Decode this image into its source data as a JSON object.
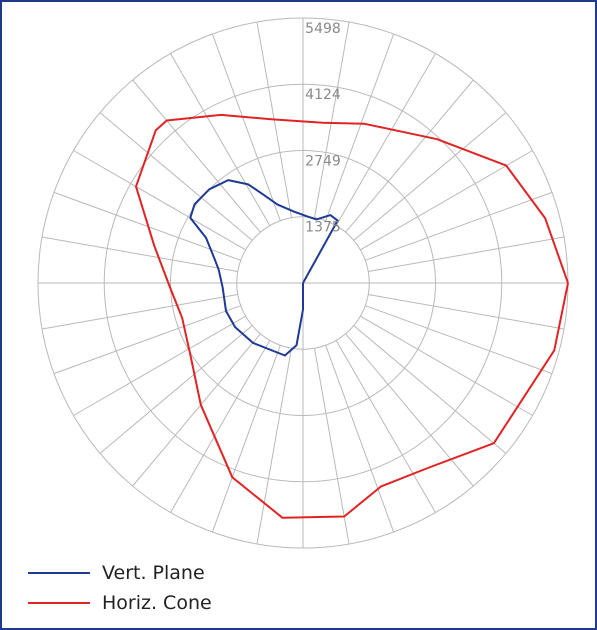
{
  "chart_data": {
    "type": "polar",
    "rlim": [
      0,
      5498
    ],
    "r_ticks": [
      1375,
      2749,
      4124,
      5498
    ],
    "r_tick_labels": [
      "1375",
      "2749",
      "4124",
      "5498"
    ],
    "angular_divisions": 36,
    "grid": true,
    "legend_position": "bottom-left",
    "series": [
      {
        "name": "Vert. Plane",
        "color": "#1f3a93",
        "points": [
          [
            0,
            0
          ],
          [
            1480,
            61
          ],
          [
            1520,
            68
          ],
          [
            1350,
            78
          ],
          [
            1380,
            86
          ],
          [
            1490,
            97
          ],
          [
            1710,
            108
          ],
          [
            2000,
            114
          ],
          [
            2340,
            119
          ],
          [
            2640,
            126
          ],
          [
            2750,
            135
          ],
          [
            2780,
            144
          ],
          [
            2700,
            150
          ],
          [
            2220,
            155
          ],
          [
            1920,
            164
          ],
          [
            1770,
            171
          ],
          [
            1670,
            183
          ],
          [
            1700,
            200
          ],
          [
            1680,
            213
          ],
          [
            1620,
            230
          ],
          [
            1550,
            256
          ],
          [
            1300,
            264
          ],
          [
            550,
            270
          ],
          [
            0,
            0
          ]
        ]
      },
      {
        "name": "Horiz. Cone",
        "color": "#e02424",
        "points": [
          [
            5498,
            0
          ],
          [
            5200,
            15
          ],
          [
            4870,
            30
          ],
          [
            4080,
            47
          ],
          [
            3540,
            69
          ],
          [
            3350,
            83
          ],
          [
            3460,
            101
          ],
          [
            3880,
            116
          ],
          [
            4400,
            130
          ],
          [
            4400,
            134
          ],
          [
            4000,
            150
          ],
          [
            3180,
            166
          ],
          [
            2760,
            182
          ],
          [
            2610,
            196
          ],
          [
            2780,
            213
          ],
          [
            3300,
            230
          ],
          [
            4290,
            250
          ],
          [
            4890,
            265
          ],
          [
            4920,
            280
          ],
          [
            4520,
            291
          ],
          [
            4630,
            304
          ],
          [
            5170,
            320
          ],
          [
            5398,
            345
          ],
          [
            5498,
            360
          ]
        ]
      }
    ]
  },
  "legend": {
    "items": [
      {
        "label": "Vert. Plane",
        "color": "#1f3a93"
      },
      {
        "label": "Horiz. Cone",
        "color": "#e02424"
      }
    ]
  }
}
